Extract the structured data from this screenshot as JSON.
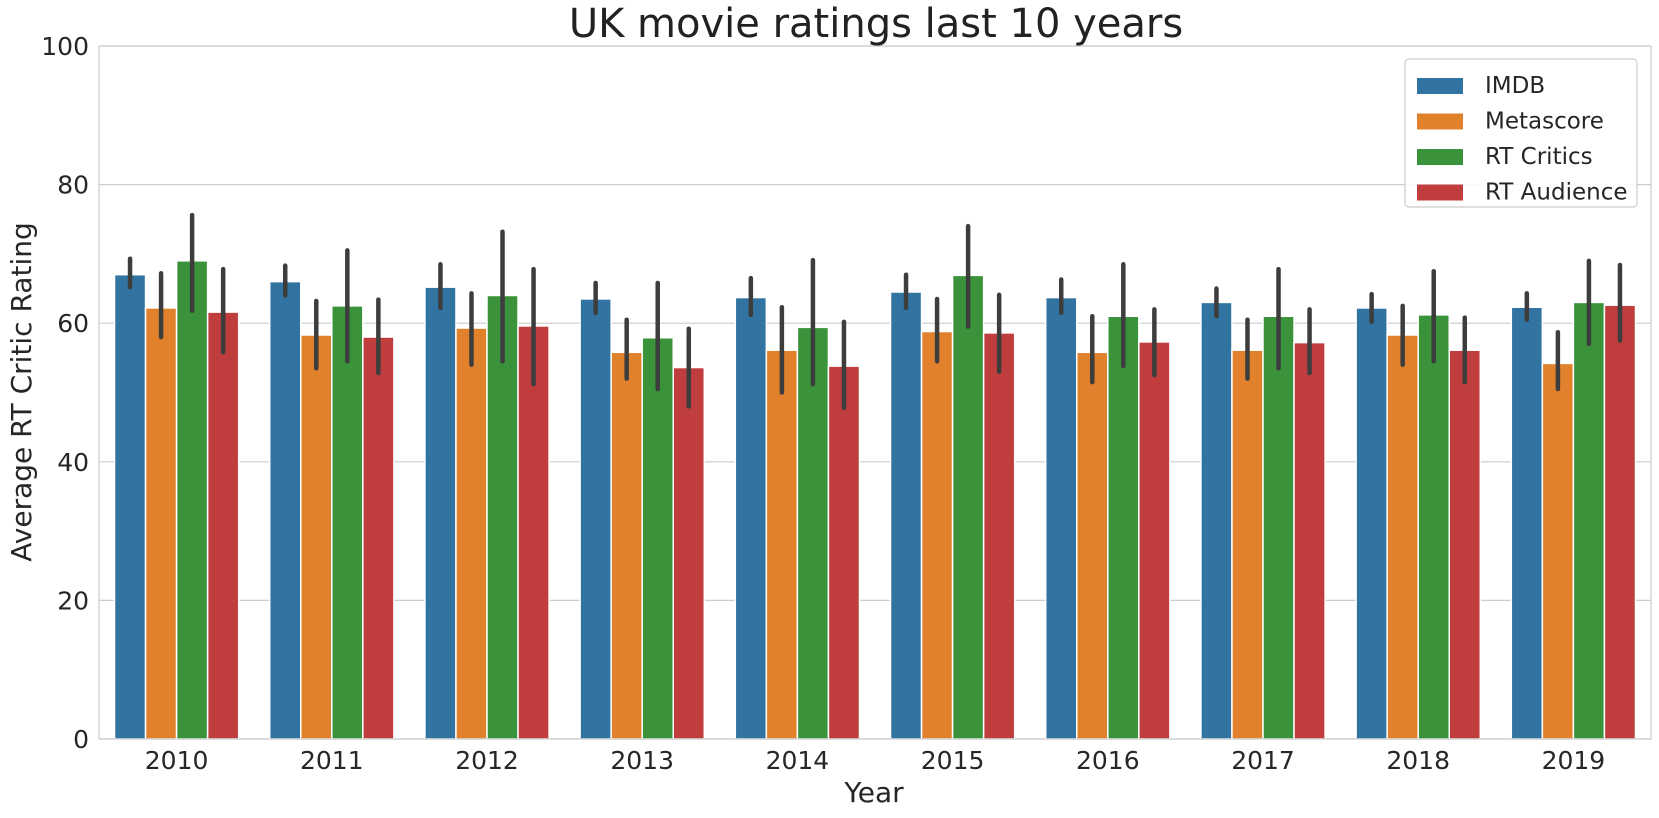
{
  "chart_data": {
    "type": "bar",
    "title": "UK movie ratings last 10 years",
    "xlabel": "Year",
    "ylabel": "Average RT Critic Rating",
    "ylim": [
      0,
      100
    ],
    "yticks": [
      0,
      20,
      40,
      60,
      80,
      100
    ],
    "grid": "horizontal",
    "legend_position": "top-right",
    "categories": [
      "2010",
      "2011",
      "2012",
      "2013",
      "2014",
      "2015",
      "2016",
      "2017",
      "2018",
      "2019"
    ],
    "series": [
      {
        "name": "IMDB",
        "color": "#3274a1",
        "values": [
          67.0,
          66.0,
          65.2,
          63.5,
          63.7,
          64.5,
          63.7,
          63.0,
          62.2,
          62.3
        ],
        "ci_low": [
          65.2,
          64.0,
          62.2,
          61.5,
          61.2,
          62.2,
          61.5,
          61.0,
          60.2,
          60.5
        ],
        "ci_high": [
          69.3,
          68.3,
          68.5,
          65.8,
          66.5,
          67.0,
          66.3,
          65.0,
          64.2,
          64.3
        ]
      },
      {
        "name": "Metascore",
        "color": "#e1812c",
        "values": [
          62.2,
          58.3,
          59.3,
          55.8,
          56.1,
          58.8,
          55.8,
          56.1,
          58.3,
          54.2
        ],
        "ci_low": [
          58.0,
          53.5,
          54.0,
          52.0,
          50.0,
          54.5,
          51.5,
          52.0,
          54.0,
          50.5
        ],
        "ci_high": [
          67.2,
          63.2,
          64.3,
          60.5,
          62.3,
          63.5,
          61.0,
          60.5,
          62.5,
          58.7
        ]
      },
      {
        "name": "RT Critics",
        "color": "#3a923a",
        "values": [
          69.0,
          62.5,
          64.0,
          57.9,
          59.4,
          66.9,
          61.0,
          61.0,
          61.2,
          63.0
        ],
        "ci_low": [
          61.8,
          54.5,
          54.5,
          50.5,
          51.2,
          59.5,
          53.8,
          53.5,
          54.5,
          57.0
        ],
        "ci_high": [
          75.6,
          70.5,
          73.2,
          65.8,
          69.1,
          74.0,
          68.5,
          67.8,
          67.5,
          69.0
        ]
      },
      {
        "name": "RT Audience",
        "color": "#c03d3e",
        "values": [
          61.6,
          58.0,
          59.6,
          53.6,
          53.8,
          58.6,
          57.3,
          57.2,
          56.1,
          62.6
        ],
        "ci_low": [
          55.8,
          52.8,
          51.2,
          48.0,
          47.8,
          53.0,
          52.5,
          52.8,
          51.5,
          57.5
        ],
        "ci_high": [
          67.8,
          63.4,
          67.8,
          59.2,
          60.2,
          64.1,
          62.0,
          62.0,
          60.8,
          68.4
        ]
      }
    ]
  }
}
